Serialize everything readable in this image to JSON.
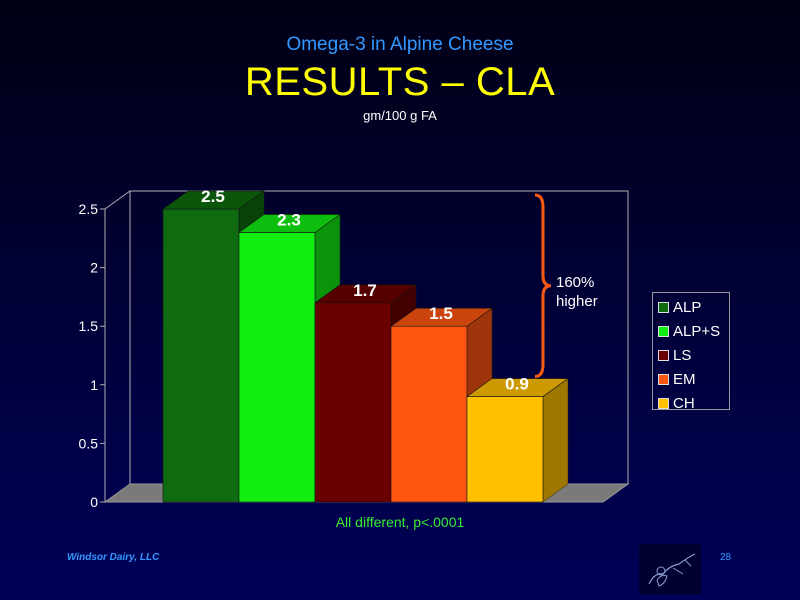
{
  "header": {
    "subtitle": "Omega-3 in Alpine Cheese",
    "title": "RESULTS – CLA",
    "units": "gm/100 g FA"
  },
  "chart_data": {
    "type": "bar",
    "categories": [
      "ALP",
      "ALP+S",
      "LS",
      "EM",
      "CH"
    ],
    "values": [
      2.5,
      2.3,
      1.7,
      1.5,
      0.9
    ],
    "data_labels": [
      "2.5",
      "2.3",
      "1.7",
      "1.5",
      "0.9"
    ],
    "colors": [
      "#0f6b0f",
      "#11ee11",
      "#6a0000",
      "#ff5510",
      "#ffc000"
    ],
    "ylim": [
      0,
      2.5
    ],
    "yticks": [
      0,
      0.5,
      1,
      1.5,
      2,
      2.5
    ],
    "ytick_labels": [
      "0",
      "0.5",
      "1",
      "1.5",
      "2",
      "2.5"
    ],
    "three_d": true,
    "grid": false,
    "legend_position": "right"
  },
  "annotation": {
    "line1": "160%",
    "line2": "higher",
    "color": "#ff5a10"
  },
  "footnote": "All different, p<.0001",
  "footer": {
    "company": "Windsor Dairy, LLC",
    "page_number": "28"
  },
  "legend": {
    "items": [
      {
        "label": "ALP",
        "color": "#0f6b0f"
      },
      {
        "label": "ALP+S",
        "color": "#11ee11"
      },
      {
        "label": "LS",
        "color": "#6a0000"
      },
      {
        "label": "EM",
        "color": "#ff5510"
      },
      {
        "label": "CH",
        "color": "#ffc000"
      }
    ]
  }
}
